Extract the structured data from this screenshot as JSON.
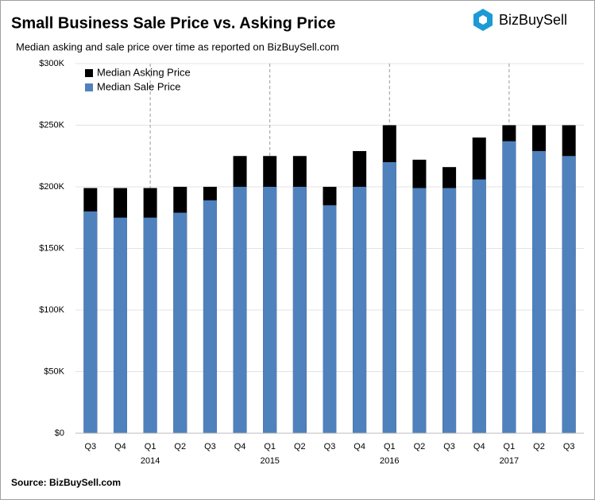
{
  "chart_data": {
    "type": "overlap-bar",
    "title": "Small Business Sale Price vs. Asking Price",
    "subtitle": "Median asking and sale price over time as reported  on  BizBuySell.com",
    "brand": "BizBuySell",
    "source": "Source: BizBuySell.com",
    "categories": [
      "Q3",
      "Q4",
      "Q1",
      "Q2",
      "Q3",
      "Q4",
      "Q1",
      "Q2",
      "Q3",
      "Q4",
      "Q1",
      "Q2",
      "Q3",
      "Q4",
      "Q1",
      "Q2",
      "Q3"
    ],
    "year_labels": [
      null,
      null,
      "2014",
      null,
      null,
      null,
      "2015",
      null,
      null,
      null,
      "2016",
      null,
      null,
      null,
      "2017",
      null,
      null
    ],
    "series": [
      {
        "name": "Median Asking Price",
        "color": "#000000",
        "values": [
          199000,
          199000,
          199000,
          200000,
          200000,
          225000,
          225000,
          225000,
          200000,
          229000,
          250000,
          222000,
          216000,
          240000,
          250000,
          250000,
          250000
        ]
      },
      {
        "name": "Median Sale Price",
        "color": "#4f81bd",
        "values": [
          180000,
          175000,
          175000,
          179000,
          189000,
          200000,
          200000,
          200000,
          185000,
          200000,
          220000,
          199000,
          199000,
          206000,
          237000,
          229000,
          225000
        ]
      }
    ],
    "ylim": [
      0,
      300000
    ],
    "yticks": [
      {
        "value": 0,
        "label": "$0"
      },
      {
        "value": 50000,
        "label": "$50K"
      },
      {
        "value": 100000,
        "label": "$100K"
      },
      {
        "value": 150000,
        "label": "$150K"
      },
      {
        "value": 200000,
        "label": "$200K"
      },
      {
        "value": 250000,
        "label": "$250K"
      },
      {
        "value": 300000,
        "label": "$300K"
      }
    ],
    "grid": true,
    "legend": "top-left"
  }
}
